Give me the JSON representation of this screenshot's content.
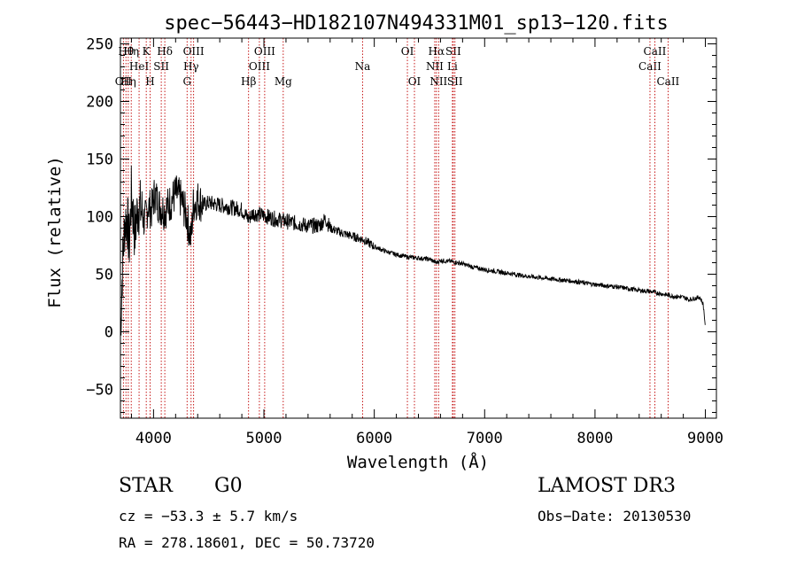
{
  "chart_data": {
    "type": "line",
    "title": "spec−56443−HD182107N494331M01_sp13−120.fits",
    "xlabel": "Wavelength (Å)",
    "ylabel": "Flux (relative)",
    "xlim": [
      3700,
      9100
    ],
    "ylim": [
      -75,
      255
    ],
    "x_ticks": [
      4000,
      5000,
      6000,
      7000,
      8000,
      9000
    ],
    "x_tick_labels": [
      "4000",
      "5000",
      "6000",
      "7000",
      "8000",
      "9000"
    ],
    "y_ticks": [
      -50,
      0,
      50,
      100,
      150,
      200,
      250
    ],
    "y_tick_labels": [
      "−50",
      "0",
      "50",
      "100",
      "150",
      "200",
      "250"
    ],
    "series": [
      {
        "name": "spectrum",
        "x": [
          3700,
          3720,
          3740,
          3760,
          3780,
          3800,
          3830,
          3860,
          3890,
          3920,
          3950,
          3980,
          4010,
          4050,
          4100,
          4150,
          4200,
          4250,
          4300,
          4340,
          4360,
          4400,
          4450,
          4500,
          4600,
          4700,
          4800,
          4860,
          4900,
          5000,
          5100,
          5200,
          5300,
          5400,
          5500,
          5560,
          5600,
          5700,
          5800,
          5900,
          6000,
          6100,
          6200,
          6300,
          6400,
          6500,
          6563,
          6600,
          6700,
          6800,
          6900,
          7000,
          7200,
          7400,
          7600,
          7800,
          8000,
          8200,
          8400,
          8500,
          8600,
          8700,
          8800,
          8850,
          8900,
          8950,
          8980,
          8995,
          9000
        ],
        "y": [
          0,
          60,
          95,
          100,
          75,
          120,
          85,
          110,
          105,
          95,
          110,
          105,
          120,
          110,
          105,
          112,
          120,
          115,
          100,
          80,
          110,
          115,
          110,
          112,
          110,
          108,
          106,
          98,
          103,
          101,
          98,
          96,
          94,
          92,
          92,
          98,
          90,
          86,
          83,
          80,
          74,
          70,
          67,
          65,
          64,
          63,
          60,
          62,
          61,
          59,
          56,
          54,
          51,
          48,
          46,
          44,
          41,
          39,
          36,
          35,
          33,
          31,
          30,
          28,
          29,
          30,
          24,
          10,
          0
        ]
      }
    ],
    "spectral_lines": [
      {
        "wavelength": 3727,
        "label": "OII",
        "row": 3
      },
      {
        "wavelength": 3750,
        "label": "Hθ",
        "row": 1
      },
      {
        "wavelength": 3771,
        "label": "Hη",
        "row": 3
      },
      {
        "wavelength": 3798,
        "label": "Hη",
        "row": 1
      },
      {
        "wavelength": 3869,
        "label": "HeI",
        "row": 2
      },
      {
        "wavelength": 3934,
        "label": "K",
        "row": 1
      },
      {
        "wavelength": 3969,
        "label": "H",
        "row": 3
      },
      {
        "wavelength": 4070,
        "label": "SII",
        "row": 2
      },
      {
        "wavelength": 4102,
        "label": "Hδ",
        "row": 1
      },
      {
        "wavelength": 4304,
        "label": "G",
        "row": 3
      },
      {
        "wavelength": 4340,
        "label": "Hγ",
        "row": 2
      },
      {
        "wavelength": 4363,
        "label": "OIII",
        "row": 1
      },
      {
        "wavelength": 4861,
        "label": "Hβ",
        "row": 3
      },
      {
        "wavelength": 4959,
        "label": "OIII",
        "row": 2
      },
      {
        "wavelength": 5007,
        "label": "OIII",
        "row": 1
      },
      {
        "wavelength": 5175,
        "label": "Mg",
        "row": 3
      },
      {
        "wavelength": 5894,
        "label": "Na",
        "row": 2
      },
      {
        "wavelength": 6300,
        "label": "OI",
        "row": 1
      },
      {
        "wavelength": 6364,
        "label": "OI",
        "row": 3
      },
      {
        "wavelength": 6548,
        "label": "NII",
        "row": 2
      },
      {
        "wavelength": 6563,
        "label": "Hα",
        "row": 1
      },
      {
        "wavelength": 6583,
        "label": "NII",
        "row": 3
      },
      {
        "wavelength": 6708,
        "label": "Li",
        "row": 2
      },
      {
        "wavelength": 6716,
        "label": "SII",
        "row": 1
      },
      {
        "wavelength": 6731,
        "label": "SII",
        "row": 3
      },
      {
        "wavelength": 8498,
        "label": "CaII",
        "row": 2
      },
      {
        "wavelength": 8542,
        "label": "CaII",
        "row": 1
      },
      {
        "wavelength": 8662,
        "label": "CaII",
        "row": 3
      }
    ]
  },
  "info": {
    "object_class": "STAR",
    "subclass": "G0",
    "survey": "LAMOST DR3",
    "cz": "cz = −53.3 ± 5.7 km/s",
    "obs_date": "Obs−Date: 20130530",
    "coords": "RA = 278.18601, DEC =  50.73720"
  },
  "colors": {
    "line": "#c00000",
    "spectrum": "#000000",
    "axis": "#000000"
  }
}
